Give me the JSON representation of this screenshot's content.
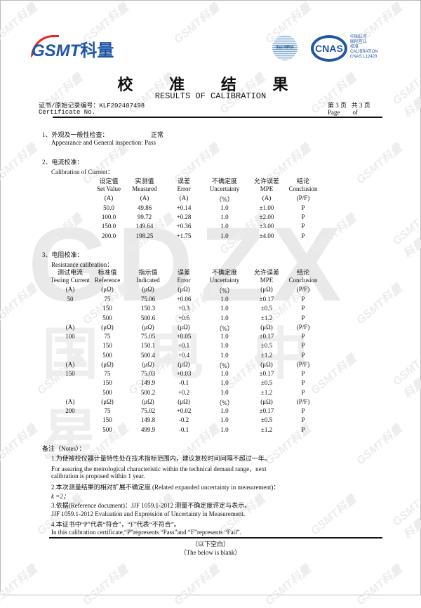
{
  "watermark": {
    "big": "GDZX",
    "cn": "国电中星",
    "small": "GSMT科量"
  },
  "header": {
    "logo": {
      "latin": "GSMT",
      "cn": "科量"
    },
    "ilac": "ilac-MRA",
    "cnas": {
      "mark": "CNAS",
      "lines": [
        "中国认可",
        "国际互认",
        "校准",
        "CALIBRATION",
        "CNAS L12420"
      ]
    },
    "title": "校 准 结 果",
    "subtitle": "RESULTS OF CALIBRATION",
    "cert_no_label_cn": "证书/原始记录编号：KLF202407498",
    "cert_no_label_en": "Certificate No.",
    "page_cn": "第 3 页   共 3 页",
    "page_en": "Page        of"
  },
  "section1": {
    "title": "1、外观及一般性检查：",
    "result_cn": "正常",
    "en": "Appearance and General inspection: Pass"
  },
  "section2": {
    "title": "2、电流校准：",
    "en": "Calibration of Current：",
    "headers": [
      [
        "设定值",
        "Set Value",
        "(A)"
      ],
      [
        "实测值",
        "Measured",
        "(A)"
      ],
      [
        "误差",
        "Error",
        "(A)"
      ],
      [
        "不确定度",
        "Uncertainty",
        "（%）"
      ],
      [
        "允许误差",
        "MPE",
        "(A)"
      ],
      [
        "结论",
        "Conclusion",
        "(P/F)"
      ]
    ],
    "rows": [
      [
        "50.0",
        "49.86",
        "+0.14",
        "1.0",
        "±1.00",
        "P"
      ],
      [
        "100.0",
        "99.72",
        "+0.28",
        "1.0",
        "±2.00",
        "P"
      ],
      [
        "150.0",
        "149.64",
        "+0.36",
        "1.0",
        "±3.00",
        "P"
      ],
      [
        "200.0",
        "198.25",
        "+1.75",
        "1.0",
        "±4.00",
        "P"
      ]
    ]
  },
  "section3": {
    "title": "3、电阻校准：",
    "en": "Resistance calibration：",
    "headers": [
      [
        "测试电流",
        "Testing Current",
        "(A)"
      ],
      [
        "标准值",
        "Reference",
        "(μΩ)"
      ],
      [
        "指示值",
        "Indicated",
        "(μΩ)"
      ],
      [
        "误差",
        "Error",
        "(μΩ)"
      ],
      [
        "不确定度",
        "Uncertainty",
        "（%）"
      ],
      [
        "允许误差",
        "MPE",
        "(μΩ)"
      ],
      [
        "结论",
        "Conclusion",
        "(P/F)"
      ]
    ],
    "rows": [
      [
        "50",
        "75",
        "75.06",
        "+0.06",
        "1.0",
        "±0.17",
        "P"
      ],
      [
        "",
        "150",
        "150.3",
        "+0.3",
        "1.0",
        "±0.5",
        "P"
      ],
      [
        "",
        "500",
        "500.6",
        "+0.6",
        "1.0",
        "±1.2",
        "P"
      ],
      [
        "(A)",
        "(μΩ)",
        "(μΩ)",
        "(μΩ)",
        "（%）",
        "(μΩ)",
        "(P/F)"
      ],
      [
        "100",
        "75",
        "75.05",
        "+0.05",
        "1.0",
        "±0.17",
        "P"
      ],
      [
        "",
        "150",
        "150.1",
        "+0.1",
        "1.0",
        "±0.5",
        "P"
      ],
      [
        "",
        "500",
        "500.4",
        "+0.4",
        "1.0",
        "±1.2",
        "P"
      ],
      [
        "(A)",
        "(μΩ)",
        "(μΩ)",
        "(μΩ)",
        "（%）",
        "(μΩ)",
        "(P/F)"
      ],
      [
        "150",
        "75",
        "75.03",
        "+0.03",
        "1.0",
        "±0.17",
        "P"
      ],
      [
        "",
        "150",
        "149.9",
        "-0.1",
        "1.0",
        "±0.5",
        "P"
      ],
      [
        "",
        "500",
        "500.2",
        "+0.2",
        "1.0",
        "±1.2",
        "P"
      ],
      [
        "(A)",
        "(μΩ)",
        "(μΩ)",
        "(μΩ)",
        "（%）",
        "(μΩ)",
        "(P/F)"
      ],
      [
        "200",
        "75",
        "75.02",
        "+0.02",
        "1.0",
        "±0.17",
        "P"
      ],
      [
        "",
        "150",
        "149.8",
        "-0.2",
        "1.0",
        "±0.5",
        "P"
      ],
      [
        "",
        "500",
        "499.9",
        "-0.1",
        "1.0",
        "±1.2",
        "P"
      ]
    ]
  },
  "notes": {
    "title": "备注（Notes）：",
    "lines": [
      "1.为使被校仪器计量特性处在技术指标范围内，建议复校时间间隔不超过一年。",
      "For assuring the metrological characteristic within the technical demand range，next",
      "calibration is proposed within 1 year.",
      "2.本次测量结果的相对扩展不确定度 (Related expanded uncertainty in measurement)：",
      "k =2；",
      "3.依据(Reference document)：JJF 1059.1-2012 测量不确定度评定与表示。",
      "JJF 1059.1-2012 Evaluation and Expression of Uncertainty in Measurement.",
      "4.本证书中“P”代表“符合”，“F”代表“不符合”。",
      "In this calibration certificate,“P”represents “Pass”and “F”represents “Fail”."
    ],
    "blank_cn": "（以下空白）",
    "blank_en": "（The below is blank）"
  }
}
